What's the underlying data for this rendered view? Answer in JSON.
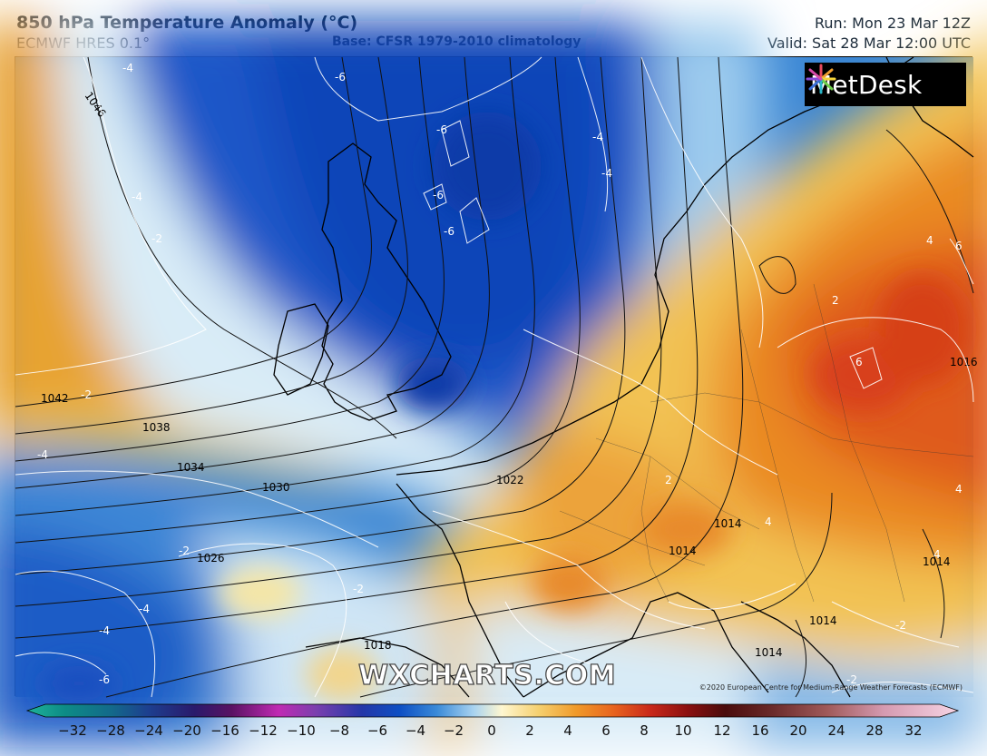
{
  "header": {
    "title": "850 hPa Temperature Anomaly (°C)",
    "model": "ECMWF HRES 0.1°",
    "base": "Base: CFSR 1979-2010 climatology",
    "run": "Run: Mon 23 Mar 12Z",
    "valid": "Valid: Sat 28 Mar 12:00 UTC"
  },
  "logo": {
    "text": "MetDesk",
    "icon": "metdesk-star-icon"
  },
  "watermark": "WXCHARTS.COM",
  "copyright": "©2020 European Centre for Medium-Range Weather Forecasts (ECMWF)",
  "isobar_labels": [
    "1046",
    "1042",
    "1038",
    "1034",
    "1030",
    "1026",
    "1022",
    "1018",
    "1014",
    "1014",
    "1014",
    "1014",
    "1014",
    "1016"
  ],
  "anomaly_labels": [
    "-4",
    "-6",
    "-6",
    "-6",
    "-6",
    "-4",
    "-4",
    "-4",
    "-2",
    "-2",
    "-2",
    "-4",
    "-4",
    "-4",
    "-6",
    "-2",
    "2",
    "2",
    "4",
    "6",
    "6",
    "4",
    "4",
    "4",
    "-2",
    "-2"
  ],
  "colorbar": {
    "min_label": "-32",
    "ticks": [
      "−32",
      "−28",
      "−24",
      "−20",
      "−16",
      "−12",
      "−10",
      "−8",
      "−6",
      "−4",
      "−2",
      "0",
      "2",
      "4",
      "6",
      "8",
      "10",
      "12",
      "16",
      "20",
      "24",
      "28",
      "32"
    ],
    "colors": [
      "#1fb39a",
      "#0d8c86",
      "#136a8a",
      "#1d3f8f",
      "#2a1a6b",
      "#4a1263",
      "#8a1a8a",
      "#c02ab3",
      "#7b3fae",
      "#2437a8",
      "#0e4fc4",
      "#2a7fd6",
      "#6eb0e6",
      "#c9e4f4",
      "#fff7d0",
      "#f5cf6e",
      "#f09a2a",
      "#e8641f",
      "#d2351a",
      "#a3160f",
      "#6f1010",
      "#4a0c0c",
      "#8a3b3b",
      "#c27a7a",
      "#e6b3c4",
      "#f4cfe0"
    ]
  }
}
